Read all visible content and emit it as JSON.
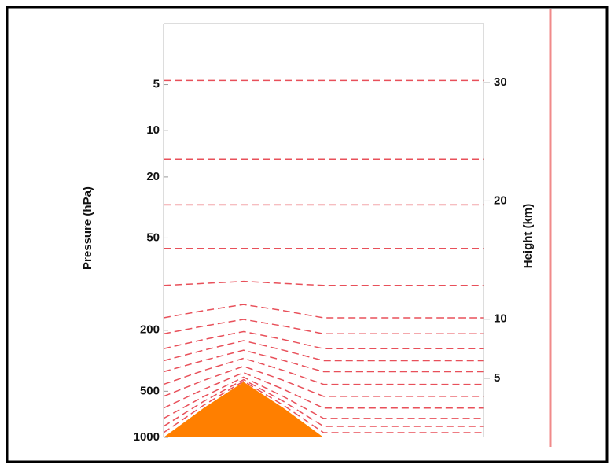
{
  "chart_data": {
    "type": "line",
    "ylabel": "Pressure (hPa)",
    "y2label": "Height (km)",
    "log_y": true,
    "ylim": [
      1000,
      2
    ],
    "yticks": [
      5,
      10,
      20,
      50,
      200,
      500,
      1000
    ],
    "y2lim": [
      0,
      35
    ],
    "y2ticks": [
      30,
      20,
      10,
      5
    ],
    "categories": [
      null,
      null,
      null,
      null,
      null,
      null,
      null,
      null,
      null
    ],
    "line_color": "#e8505a",
    "series": [
      {
        "values": [
          4.7,
          4.7,
          4.7,
          4.7,
          4.7,
          4.7,
          4.7,
          4.7,
          4.7
        ]
      },
      {
        "values": [
          15.3,
          15.3,
          15.3,
          15.3,
          15.3,
          15.3,
          15.3,
          15.3,
          15.3
        ]
      },
      {
        "values": [
          30.4,
          30.4,
          30.4,
          30.4,
          30.4,
          30.4,
          30.4,
          30.4,
          30.4
        ]
      },
      {
        "values": [
          58.5,
          58.5,
          58.5,
          58.5,
          58.5,
          58.5,
          58.5,
          58.5,
          58.5
        ]
      },
      {
        "values": [
          102,
          99,
          96,
          99,
          102,
          102,
          102,
          102,
          102
        ]
      },
      {
        "values": [
          166,
          149,
          136,
          149,
          166,
          166,
          166,
          166,
          166
        ]
      },
      {
        "values": [
          211,
          188,
          170,
          188,
          211,
          211,
          211,
          211,
          211
        ]
      },
      {
        "values": [
          264,
          230,
          204,
          230,
          264,
          264,
          264,
          264,
          264
        ]
      },
      {
        "values": [
          316,
          270,
          234,
          270,
          316,
          316,
          316,
          316,
          316
        ]
      },
      {
        "values": [
          373,
          315,
          270,
          315,
          373,
          373,
          373,
          373,
          373
        ]
      },
      {
        "values": [
          451,
          366,
          305,
          366,
          451,
          451,
          451,
          451,
          451
        ]
      },
      {
        "values": [
          540,
          425,
          344,
          425,
          540,
          540,
          540,
          540,
          540
        ]
      },
      {
        "values": [
          644,
          486,
          378,
          486,
          644,
          644,
          644,
          644,
          644
        ]
      },
      {
        "values": [
          752,
          542,
          405,
          542,
          752,
          752,
          752,
          752,
          752
        ]
      },
      {
        "values": [
          847,
          583,
          420,
          583,
          847,
          847,
          847,
          847,
          847
        ]
      },
      {
        "values": [
          931,
          618,
          430,
          618,
          931,
          931,
          931,
          931,
          931
        ]
      }
    ],
    "terrain": {
      "color": "#ff7f00",
      "values": [
        1000,
        644,
        435,
        644,
        1000,
        1000,
        1000,
        1000,
        1000
      ]
    }
  }
}
